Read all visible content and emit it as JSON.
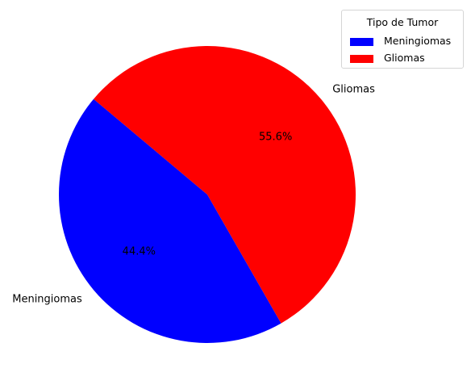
{
  "chart_data": {
    "type": "pie",
    "title": "",
    "slices": [
      {
        "label": "Meningiomas",
        "value": 44.4,
        "pct_label": "44.4%",
        "color": "#0000ff"
      },
      {
        "label": "Gliomas",
        "value": 55.6,
        "pct_label": "55.6%",
        "color": "#ff0000"
      }
    ],
    "start_angle_deg": 140,
    "legend": {
      "title": "Tipo de Tumor",
      "placement": "top-right",
      "entries": [
        "Meningiomas",
        "Gliomas"
      ]
    }
  }
}
